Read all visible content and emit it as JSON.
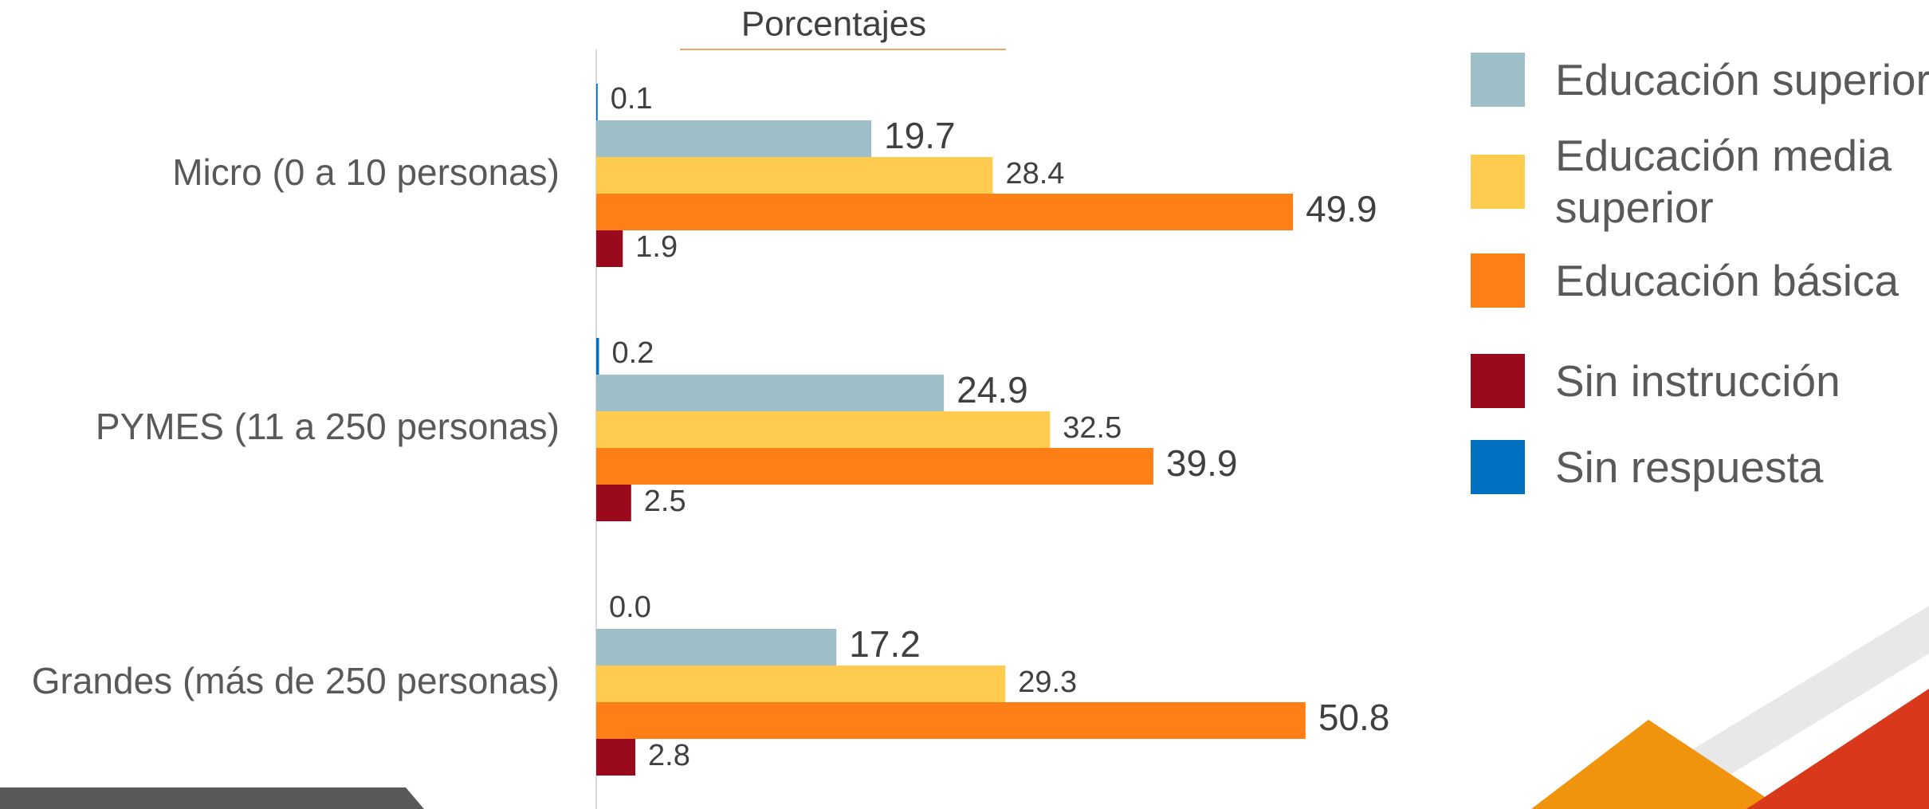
{
  "chart_data": {
    "type": "hbar",
    "title": "Porcentajes",
    "categories": [
      "Micro (0 a 10 personas)",
      "PYMES (11 a 250 personas)",
      "Grandes (más de 250 personas)"
    ],
    "series": [
      {
        "name": "Educación superior",
        "color": "#9fbfc8",
        "values": [
          19.7,
          24.9,
          17.2
        ]
      },
      {
        "name": "Educación media superior",
        "color": "#ffcc4f",
        "values": [
          28.4,
          32.5,
          29.3
        ]
      },
      {
        "name": "Educación básica",
        "color": "#ff7f17",
        "values": [
          49.9,
          39.9,
          50.8
        ]
      },
      {
        "name": "Sin instrucción",
        "color": "#9a0a1c",
        "values": [
          1.9,
          2.5,
          2.8
        ]
      },
      {
        "name": "Sin respuesta",
        "color": "#0070c0",
        "values": [
          0.1,
          0.2,
          0
        ],
        "value_labels": [
          "0.1",
          "0.2",
          "0.0"
        ]
      }
    ],
    "xlim": [
      0,
      60
    ]
  }
}
